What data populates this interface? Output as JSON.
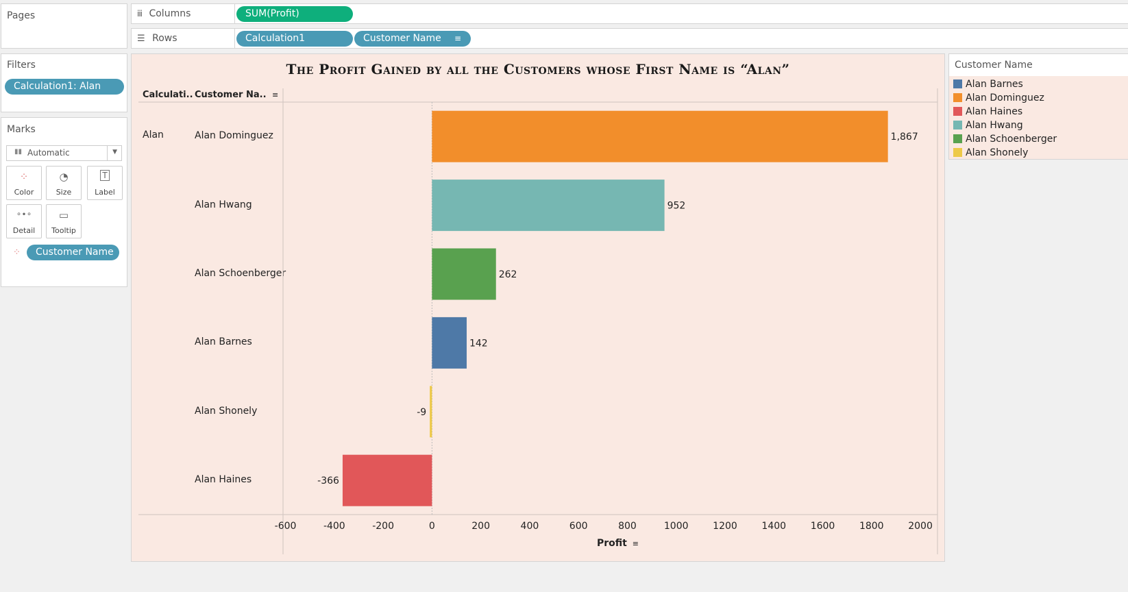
{
  "pages_panel": {
    "title": "Pages"
  },
  "shelves": {
    "columns_label": "Columns",
    "columns_pill": "SUM(Profit)",
    "rows_label": "Rows",
    "rows_pills": [
      "Calculation1",
      "Customer Name"
    ]
  },
  "filters_panel": {
    "title": "Filters",
    "pill": "Calculation1: Alan"
  },
  "marks_panel": {
    "title": "Marks",
    "mark_type": "Automatic",
    "buttons": [
      "Color",
      "Size",
      "Label",
      "Detail",
      "Tooltip"
    ],
    "color_pill": "Customer Name"
  },
  "legend": {
    "title": "Customer Name",
    "items": [
      {
        "label": "Alan Barnes",
        "color": "#4e79a7"
      },
      {
        "label": "Alan Dominguez",
        "color": "#f28e2b"
      },
      {
        "label": "Alan Haines",
        "color": "#e15759"
      },
      {
        "label": "Alan Hwang",
        "color": "#76b7b2"
      },
      {
        "label": "Alan Schoenberger",
        "color": "#59a14f"
      },
      {
        "label": "Alan Shonely",
        "color": "#edc948"
      }
    ]
  },
  "chart_data": {
    "type": "bar",
    "orientation": "horizontal",
    "title": "The Profit Gained by all the Customers whose First Name is “Alan”",
    "header_calc": "Calculati..",
    "header_customer": "Customer Na..",
    "group_label": "Alan",
    "categories": [
      "Alan Dominguez",
      "Alan Hwang",
      "Alan Schoenberger",
      "Alan Barnes",
      "Alan Shonely",
      "Alan Haines"
    ],
    "values": [
      1867,
      952,
      262,
      142,
      -9,
      -366
    ],
    "value_labels": [
      "1,867",
      "952",
      "262",
      "142",
      "-9",
      "-366"
    ],
    "colors": [
      "#f28e2b",
      "#76b7b2",
      "#59a14f",
      "#4e79a7",
      "#edc948",
      "#e15759"
    ],
    "xlabel": "Profit",
    "xlim": [
      -610,
      2070
    ],
    "xticks": [
      -600,
      -400,
      -200,
      0,
      200,
      400,
      600,
      800,
      1000,
      1200,
      1400,
      1600,
      1800,
      2000
    ]
  }
}
